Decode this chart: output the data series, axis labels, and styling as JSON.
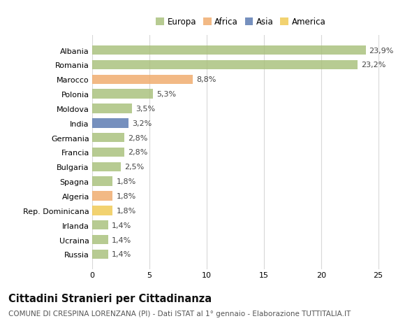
{
  "countries": [
    "Albania",
    "Romania",
    "Marocco",
    "Polonia",
    "Moldova",
    "India",
    "Germania",
    "Francia",
    "Bulgaria",
    "Spagna",
    "Algeria",
    "Rep. Dominicana",
    "Irlanda",
    "Ucraina",
    "Russia"
  ],
  "values": [
    23.9,
    23.2,
    8.8,
    5.3,
    3.5,
    3.2,
    2.8,
    2.8,
    2.5,
    1.8,
    1.8,
    1.8,
    1.4,
    1.4,
    1.4
  ],
  "labels": [
    "23,9%",
    "23,2%",
    "8,8%",
    "5,3%",
    "3,5%",
    "3,2%",
    "2,8%",
    "2,8%",
    "2,5%",
    "1,8%",
    "1,8%",
    "1,8%",
    "1,4%",
    "1,4%",
    "1,4%"
  ],
  "colors": [
    "#a8c07a",
    "#a8c07a",
    "#f0aa6a",
    "#a8c07a",
    "#a8c07a",
    "#5878b0",
    "#a8c07a",
    "#a8c07a",
    "#a8c07a",
    "#a8c07a",
    "#f0aa6a",
    "#f0c850",
    "#a8c07a",
    "#a8c07a",
    "#a8c07a"
  ],
  "continent_colors": {
    "Europa": "#a8c07a",
    "Africa": "#f0aa6a",
    "Asia": "#5878b0",
    "America": "#f0c850"
  },
  "title": "Cittadini Stranieri per Cittadinanza",
  "subtitle": "COMUNE DI CRESPINA LORENZANA (PI) - Dati ISTAT al 1° gennaio - Elaborazione TUTTITALIA.IT",
  "xlim": [
    0,
    26
  ],
  "xticks": [
    0,
    5,
    10,
    15,
    20,
    25
  ],
  "background_color": "#ffffff",
  "grid_color": "#d8d8d8",
  "bar_height": 0.65,
  "title_fontsize": 10.5,
  "subtitle_fontsize": 7.5,
  "label_fontsize": 8,
  "tick_fontsize": 8,
  "legend_fontsize": 8.5,
  "alpha": 0.82
}
